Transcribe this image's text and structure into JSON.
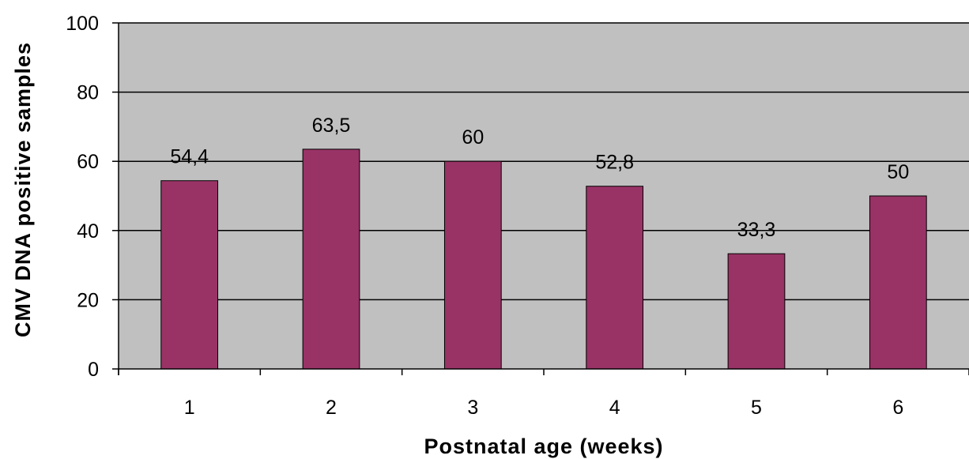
{
  "chart_data": {
    "type": "bar",
    "categories": [
      "1",
      "2",
      "3",
      "4",
      "5",
      "6"
    ],
    "values": [
      54.4,
      63.5,
      60,
      52.8,
      33.3,
      50
    ],
    "data_labels": [
      "54,4",
      "63,5",
      "60",
      "52,8",
      "33,3",
      "50"
    ],
    "xlabel": "Postnatal age (weeks)",
    "ylabel": "CMV DNA positive samples",
    "ylim": [
      0,
      100
    ],
    "yticks": [
      0,
      20,
      40,
      60,
      80,
      100
    ],
    "grid": true,
    "colors": {
      "bar": "#993366",
      "plot_background": "#c0c0c0",
      "gridline": "#000000"
    }
  }
}
